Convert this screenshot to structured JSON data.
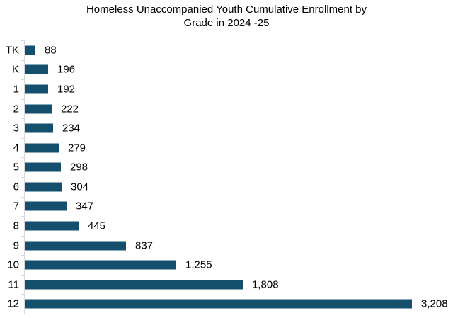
{
  "title": {
    "line1": "Homeless Unaccompanied Youth Cumulative Enrollment by",
    "line2": "Grade in 2024 -25"
  },
  "chart_data": {
    "type": "bar",
    "orientation": "horizontal",
    "title": "Homeless Unaccompanied Youth Cumulative Enrollment by Grade in 2024 -25",
    "xlabel": "",
    "ylabel": "",
    "categories": [
      "TK",
      "K",
      "1",
      "2",
      "3",
      "4",
      "5",
      "6",
      "7",
      "8",
      "9",
      "10",
      "11",
      "12"
    ],
    "values": [
      88,
      196,
      192,
      222,
      234,
      279,
      298,
      304,
      347,
      445,
      837,
      1255,
      1808,
      3208
    ],
    "data_labels": [
      "88",
      "196",
      "192",
      "222",
      "234",
      "279",
      "298",
      "304",
      "347",
      "445",
      "837",
      "1,255",
      "1,808",
      "3,208"
    ],
    "xlim": [
      0,
      3400
    ],
    "grid": false,
    "legend": false,
    "colors": {
      "bar": "#14506e",
      "axis": "#d9d9d9",
      "text": "#000000",
      "background": "#ffffff"
    }
  }
}
